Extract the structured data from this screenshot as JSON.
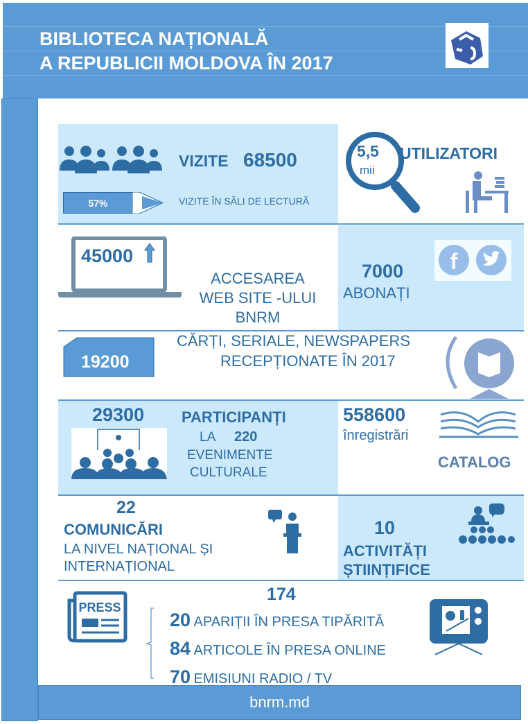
{
  "header": {
    "title_line1": "BIBLIOTECA NAȚIONALĂ",
    "title_line2": "A REPUBLICII MOLDOVA ÎN 2017",
    "logo": "bnrm-logo-cube"
  },
  "visits": {
    "label": "VIZITE",
    "value": "68500",
    "reading_room_percent": "57%",
    "reading_room_label": "VIZITE ÎN SĂLI DE LECTURĂ"
  },
  "users": {
    "value": "5,5",
    "unit": "mii",
    "label": "UTILIZATORI"
  },
  "website": {
    "value": "45000",
    "label_line1": "ACCESAREA",
    "label_line2": "WEB SITE -ULUI",
    "label_line3": "BNRM"
  },
  "subscribers": {
    "value": "7000",
    "label": "ABONAȚI",
    "icons": [
      "facebook-icon",
      "twitter-icon"
    ]
  },
  "acquisitions": {
    "value": "19200",
    "label_line1": "CĂRȚI, SERIALE, NEWSPAPERS",
    "label_line2": "RECEPȚIONATE ÎN 2017"
  },
  "participants": {
    "value": "29300",
    "label": "PARTICIPANȚI",
    "la": "LA",
    "events": "220",
    "label_line2": "EVENIMENTE",
    "label_line3": "CULTURALE"
  },
  "catalog": {
    "value": "558600",
    "label": "înregistrări",
    "logo_text": "CATALOG"
  },
  "communications": {
    "value": "22",
    "label": "COMUNICĂRI",
    "label_line2": "LA NIVEL NAȚIONAL ȘI",
    "label_line3": "INTERNAȚIONAL"
  },
  "science": {
    "value": "10",
    "label_line1": "ACTIVITĂȚI",
    "label_line2": "ȘTIINȚIFICE"
  },
  "press": {
    "total": "174",
    "icon_text": "PRESS",
    "items": [
      {
        "value": "20",
        "label": "APARIȚII ÎN PRESA TIPĂRITĂ"
      },
      {
        "value": "84",
        "label": "ARTICOLE ÎN PRESA ONLINE"
      },
      {
        "value": "70",
        "label": "EMISIUNI RADIO / TV"
      }
    ]
  },
  "footer": {
    "url": "bnrm.md"
  },
  "colors": {
    "primary": "#5b9bd5",
    "text": "#2e6da4",
    "panel": "#cce9fb"
  }
}
